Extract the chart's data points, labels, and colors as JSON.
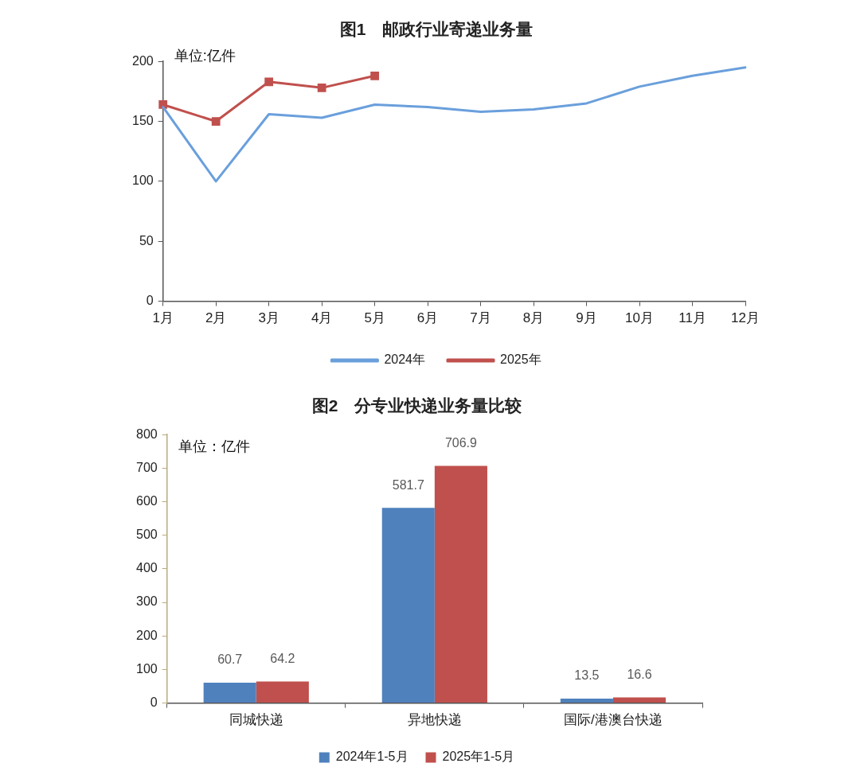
{
  "chart_data": [
    {
      "type": "line",
      "title": "图1　邮政行业寄递业务量",
      "annotations": [
        "单位:亿件"
      ],
      "categories": [
        "1月",
        "2月",
        "3月",
        "4月",
        "5月",
        "6月",
        "7月",
        "8月",
        "9月",
        "10月",
        "11月",
        "12月"
      ],
      "series": [
        {
          "name": "2024年",
          "color": "#6a9fdc",
          "marker": "none",
          "values": [
            162,
            100,
            156,
            153,
            164,
            162,
            158,
            160,
            165,
            179,
            188,
            195
          ]
        },
        {
          "name": "2025年",
          "color": "#c0504d",
          "marker": "square",
          "values": [
            164,
            150,
            183,
            178,
            188,
            null,
            null,
            null,
            null,
            null,
            null,
            null
          ]
        }
      ],
      "ylim": [
        0,
        200
      ],
      "yticks": [
        0,
        50,
        100,
        150,
        200
      ],
      "legend": "bottom"
    },
    {
      "type": "bar",
      "title": "图2　分专业快递业务量比较",
      "annotations": [
        "单位：亿件"
      ],
      "categories": [
        "同城快递",
        "异地快递",
        "国际/港澳台快递"
      ],
      "series": [
        {
          "name": "2024年1-5月",
          "color": "#4f81bd",
          "values": [
            60.7,
            581.7,
            13.5
          ]
        },
        {
          "name": "2025年1-5月",
          "color": "#c0504d",
          "values": [
            64.2,
            706.9,
            16.6
          ]
        }
      ],
      "ylim": [
        0,
        800
      ],
      "yticks": [
        0,
        100,
        200,
        300,
        400,
        500,
        600,
        700,
        800
      ],
      "data_labels": true,
      "legend": "bottom"
    }
  ]
}
